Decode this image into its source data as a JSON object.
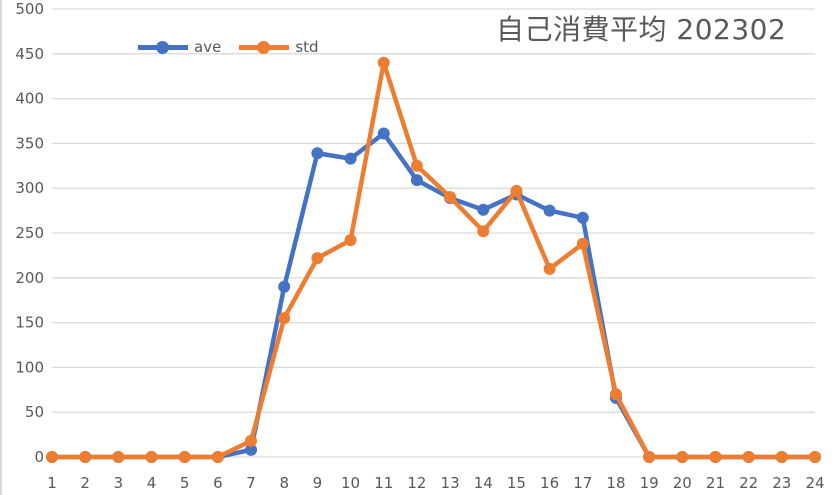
{
  "chart_data": {
    "type": "line",
    "title": "自己消費平均  202302",
    "xlabel": "",
    "ylabel": "",
    "ylim": [
      0,
      500
    ],
    "yticks": [
      0,
      50,
      100,
      150,
      200,
      250,
      300,
      350,
      400,
      450,
      500
    ],
    "grid": true,
    "legend_position": "top-left",
    "categories": [
      "1",
      "2",
      "3",
      "4",
      "5",
      "6",
      "7",
      "8",
      "9",
      "10",
      "11",
      "12",
      "13",
      "14",
      "15",
      "16",
      "17",
      "18",
      "19",
      "20",
      "21",
      "22",
      "23",
      "24"
    ],
    "series": [
      {
        "name": "ave",
        "color": "#4472C4",
        "values": [
          0,
          0,
          0,
          0,
          0,
          0,
          8,
          190,
          339,
          333,
          361,
          309,
          289,
          276,
          293,
          275,
          267,
          66,
          0,
          0,
          0,
          0,
          0,
          0
        ]
      },
      {
        "name": "std",
        "color": "#ED7D31",
        "values": [
          0,
          0,
          0,
          0,
          0,
          0,
          18,
          155,
          222,
          242,
          440,
          325,
          290,
          252,
          297,
          210,
          238,
          70,
          0,
          0,
          0,
          0,
          0,
          0
        ]
      }
    ]
  },
  "title": "自己消費平均  202302",
  "legend": [
    {
      "label": "ave",
      "color": "#4472C4"
    },
    {
      "label": "std",
      "color": "#ED7D31"
    }
  ]
}
